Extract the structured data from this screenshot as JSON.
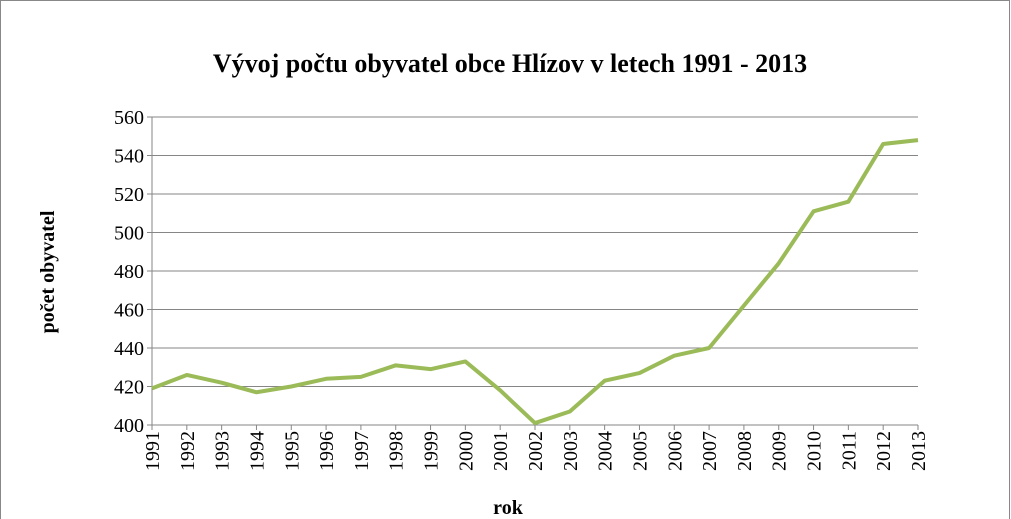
{
  "chart_data": {
    "type": "line",
    "title": "Vývoj počtu obyvatel obce Hlízov v letech 1991 - 2013",
    "x_label": "rok",
    "y_label": "počet obyvatel",
    "categories": [
      "1991",
      "1992",
      "1993",
      "1994",
      "1995",
      "1996",
      "1997",
      "1998",
      "1999",
      "2000",
      "2001",
      "2002",
      "2003",
      "2004",
      "2005",
      "2006",
      "2007",
      "2008",
      "2009",
      "2010",
      "2011",
      "2012",
      "2013"
    ],
    "values": [
      419,
      426,
      422,
      417,
      420,
      424,
      425,
      431,
      429,
      433,
      418,
      401,
      407,
      423,
      427,
      436,
      440,
      462,
      484,
      511,
      516,
      546,
      548
    ],
    "color": "#9bbb59",
    "ylim": [
      400,
      560
    ],
    "yticks": [
      400,
      420,
      440,
      460,
      480,
      500,
      520,
      540,
      560
    ],
    "grid": true
  }
}
